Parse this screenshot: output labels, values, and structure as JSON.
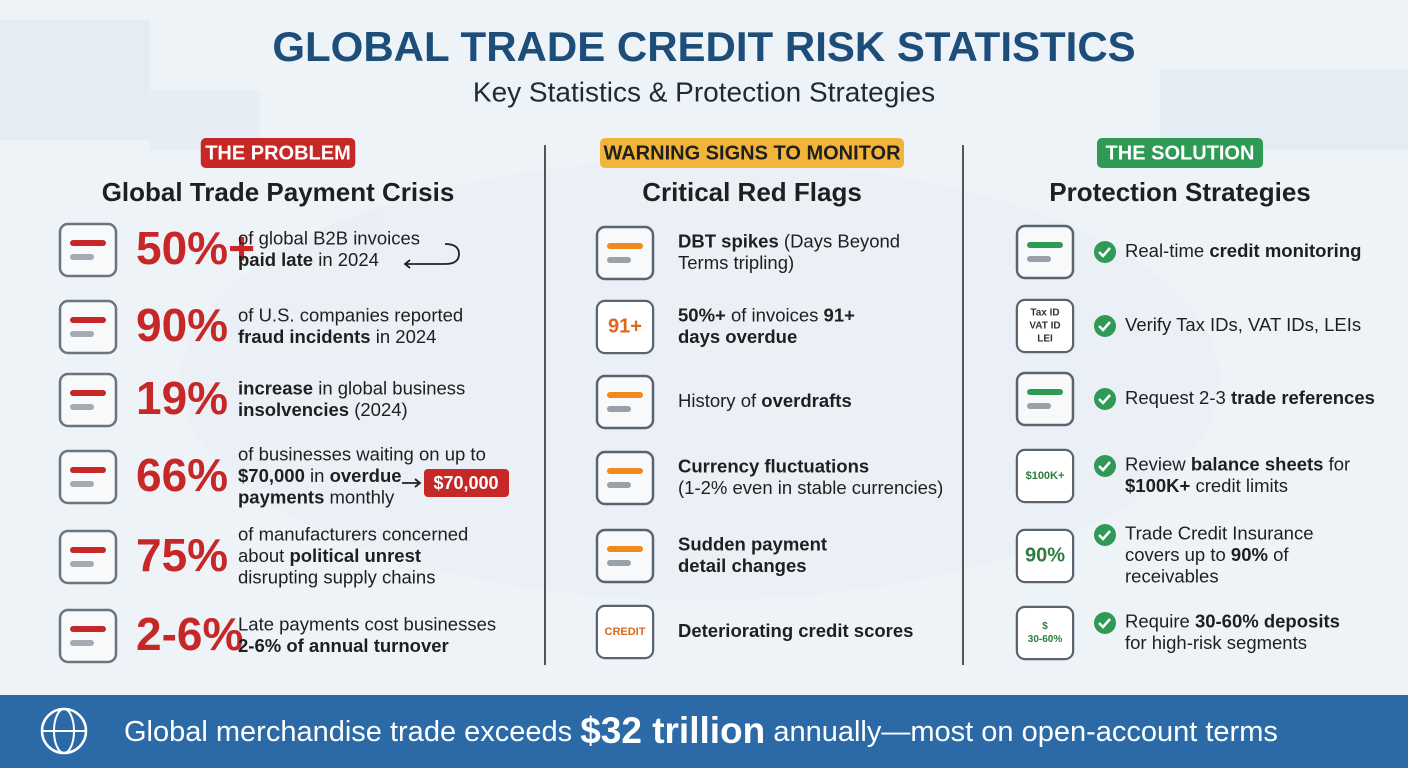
{
  "header": {
    "title": "GLOBAL TRADE CREDIT RISK STATISTICS",
    "subtitle": "Key Statistics & Protection Strategies"
  },
  "columns": [
    {
      "badge": "THE PROBLEM",
      "heading": "Global Trade Payment Crisis",
      "items": [
        {
          "stat": "50%+",
          "lines": [
            [
              {
                "text": "of global B2B invoices"
              }
            ],
            [
              {
                "text": "paid late",
                "bold": true
              },
              {
                "text": " in 2024"
              }
            ]
          ]
        },
        {
          "stat": "90%",
          "lines": [
            [
              {
                "text": "of U.S. companies reported"
              }
            ],
            [
              {
                "text": "fraud incidents",
                "bold": true
              },
              {
                "text": " in 2024"
              }
            ]
          ]
        },
        {
          "stat": "19%",
          "lines": [
            [
              {
                "text": "increase",
                "bold": true
              },
              {
                "text": " in global business"
              }
            ],
            [
              {
                "text": "insolvencies",
                "bold": true
              },
              {
                "text": " (2024)"
              }
            ]
          ]
        },
        {
          "stat": "66%",
          "lines": [
            [
              {
                "text": "of businesses waiting on up to"
              }
            ],
            [
              {
                "text": "$70,000",
                "bold": true
              },
              {
                "text": " in "
              },
              {
                "text": "overdue",
                "bold": true
              }
            ],
            [
              {
                "text": "payments",
                "bold": true
              },
              {
                "text": " monthly"
              }
            ]
          ],
          "callout": "$70,000"
        },
        {
          "stat": "75%",
          "lines": [
            [
              {
                "text": "of manufacturers concerned"
              }
            ],
            [
              {
                "text": "about "
              },
              {
                "text": "political unrest",
                "bold": true
              }
            ],
            [
              {
                "text": "disrupting supply chains"
              }
            ]
          ]
        },
        {
          "stat": "2-6%",
          "lines": [
            [
              {
                "text": "Late payments cost businesses"
              }
            ],
            [
              {
                "text": "2-6% of annual turnover",
                "bold": true
              }
            ]
          ]
        }
      ]
    },
    {
      "badge": "WARNING SIGNS TO MONITOR",
      "heading": "Critical Red Flags",
      "items": [
        {
          "lines": [
            [
              {
                "text": "DBT spikes",
                "bold": true
              },
              {
                "text": " (Days Beyond"
              }
            ],
            [
              {
                "text": "Terms tripling)"
              }
            ]
          ]
        },
        {
          "lines": [
            [
              {
                "text": "50%+",
                "bold": true
              },
              {
                "text": " of invoices "
              },
              {
                "text": "91+",
                "bold": true
              }
            ],
            [
              {
                "text": "days overdue",
                "bold": true
              }
            ]
          ],
          "icon_text": [
            "91+"
          ]
        },
        {
          "lines": [
            [
              {
                "text": "History of "
              },
              {
                "text": "overdrafts",
                "bold": true
              }
            ]
          ]
        },
        {
          "lines": [
            [
              {
                "text": "Currency fluctuations",
                "bold": true
              }
            ],
            [
              {
                "text": "(1-2% even in stable currencies)"
              }
            ]
          ]
        },
        {
          "lines": [
            [
              {
                "text": "Sudden payment",
                "bold": true
              }
            ],
            [
              {
                "text": "detail changes",
                "bold": true
              }
            ]
          ]
        },
        {
          "lines": [
            [
              {
                "text": "Deteriorating credit scores",
                "bold": true
              }
            ]
          ],
          "icon_text": [
            "CREDIT"
          ]
        }
      ]
    },
    {
      "badge": "THE SOLUTION",
      "heading": "Protection Strategies",
      "items": [
        {
          "lines": [
            [
              {
                "text": "Real-time "
              },
              {
                "text": "credit monitoring",
                "bold": true
              }
            ]
          ]
        },
        {
          "lines": [
            [
              {
                "text": "Verify Tax IDs, VAT IDs, LEIs"
              }
            ]
          ],
          "icon_text": [
            "Tax ID",
            "VAT ID",
            "LEI"
          ]
        },
        {
          "lines": [
            [
              {
                "text": "Request 2-3 "
              },
              {
                "text": "trade references",
                "bold": true
              }
            ]
          ]
        },
        {
          "lines": [
            [
              {
                "text": "Review "
              },
              {
                "text": "balance sheets",
                "bold": true
              },
              {
                "text": " for"
              }
            ],
            [
              {
                "text": "$100K+",
                "bold": true
              },
              {
                "text": " credit limits"
              }
            ]
          ],
          "icon_text": [
            "$100K+"
          ]
        },
        {
          "lines": [
            [
              {
                "text": "Trade Credit Insurance"
              }
            ],
            [
              {
                "text": "covers up to "
              },
              {
                "text": "90%",
                "bold": true
              },
              {
                "text": " of"
              }
            ],
            [
              {
                "text": "receivables"
              }
            ]
          ],
          "icon_text": [
            "90%"
          ]
        },
        {
          "lines": [
            [
              {
                "text": "Require "
              },
              {
                "text": "30-60% deposits",
                "bold": true
              }
            ],
            [
              {
                "text": "for high-risk segments"
              }
            ]
          ],
          "icon_text": [
            "$",
            "30-60%"
          ]
        }
      ]
    }
  ],
  "footer": {
    "parts": [
      {
        "text": "Global merchandise trade exceeds "
      },
      {
        "text": "$32 trillion",
        "bold": true
      },
      {
        "text": " annually—most on open-account terms"
      }
    ]
  }
}
